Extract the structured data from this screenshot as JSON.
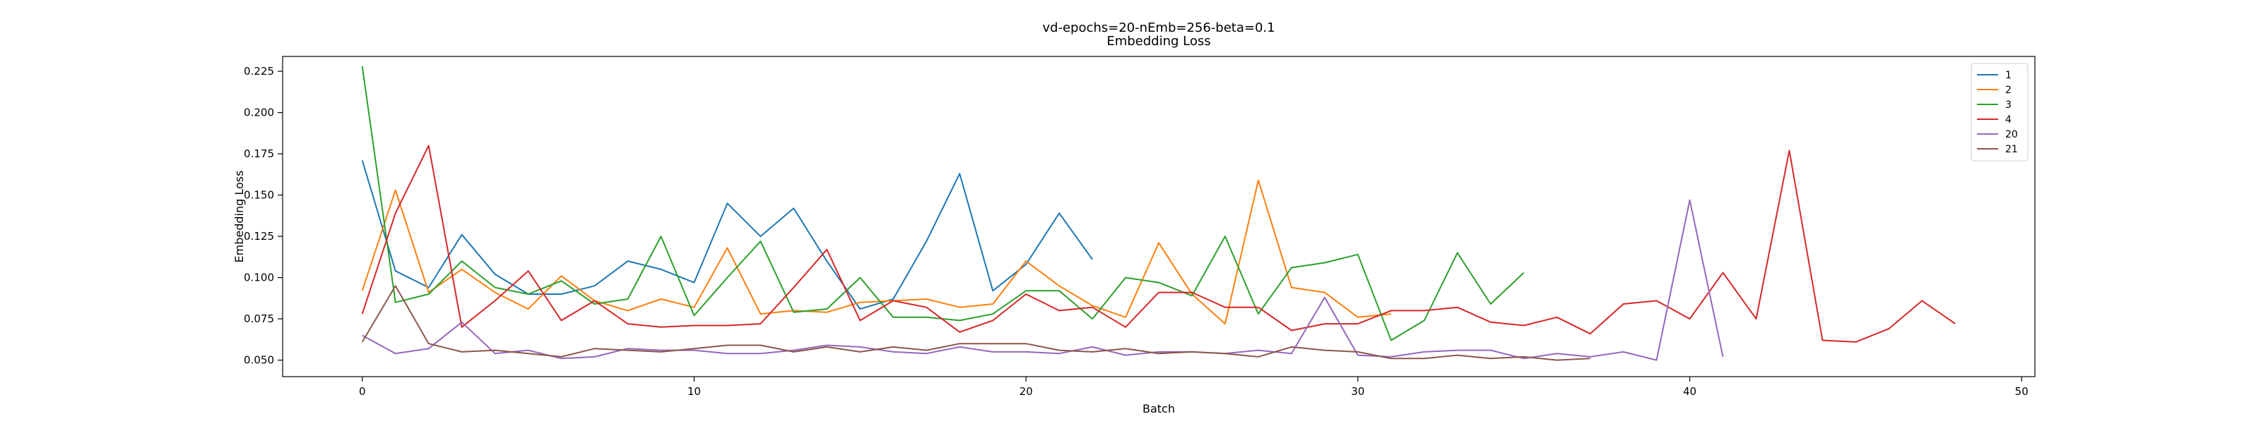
{
  "chart_data": {
    "type": "line",
    "title": "vd-epochs=20-nEmb=256-beta=0.1",
    "subtitle": "Embedding Loss",
    "xlabel": "Batch",
    "ylabel": "Embedding Loss",
    "xlim": [
      -2.4,
      50.4
    ],
    "ylim": [
      0.04,
      0.234
    ],
    "xticks": [
      0,
      10,
      20,
      30,
      40,
      50
    ],
    "yticks": [
      0.05,
      0.075,
      0.1,
      0.125,
      0.15,
      0.175,
      0.2,
      0.225
    ],
    "ytick_labels": [
      "0.050",
      "0.075",
      "0.100",
      "0.125",
      "0.150",
      "0.175",
      "0.200",
      "0.225"
    ],
    "grid": false,
    "legend_position": "top-right",
    "series": [
      {
        "name": "1",
        "color": "#1f77b4",
        "values": [
          0.171,
          0.104,
          0.094,
          0.126,
          0.102,
          0.09,
          0.09,
          0.095,
          0.11,
          0.105,
          0.097,
          0.145,
          0.125,
          0.142,
          0.11,
          0.081,
          0.087,
          0.122,
          0.163,
          0.092,
          0.108,
          0.139,
          0.111
        ]
      },
      {
        "name": "2",
        "color": "#ff7f0e",
        "values": [
          0.092,
          0.153,
          0.091,
          0.105,
          0.091,
          0.081,
          0.101,
          0.086,
          0.08,
          0.087,
          0.082,
          0.118,
          0.078,
          0.08,
          0.079,
          0.085,
          0.086,
          0.087,
          0.082,
          0.084,
          0.11,
          0.095,
          0.083,
          0.076,
          0.121,
          0.09,
          0.072,
          0.159,
          0.094,
          0.091,
          0.076,
          0.078
        ]
      },
      {
        "name": "3",
        "color": "#2ca02c",
        "values": [
          0.228,
          0.085,
          0.09,
          0.11,
          0.094,
          0.09,
          0.098,
          0.084,
          0.087,
          0.125,
          0.077,
          0.1,
          0.122,
          0.079,
          0.081,
          0.1,
          0.076,
          0.076,
          0.074,
          0.078,
          0.092,
          0.092,
          0.075,
          0.1,
          0.097,
          0.089,
          0.125,
          0.078,
          0.106,
          0.109,
          0.114,
          0.062,
          0.074,
          0.115,
          0.084,
          0.103
        ]
      },
      {
        "name": "4",
        "color": "#d62728",
        "values": [
          0.078,
          0.139,
          0.18,
          0.07,
          0.086,
          0.104,
          0.074,
          0.086,
          0.072,
          0.07,
          0.071,
          0.071,
          0.072,
          0.094,
          0.117,
          0.074,
          0.086,
          0.082,
          0.067,
          0.074,
          0.09,
          0.08,
          0.082,
          0.07,
          0.091,
          0.091,
          0.082,
          0.082,
          0.068,
          0.072,
          0.072,
          0.08,
          0.08,
          0.082,
          0.073,
          0.071,
          0.076,
          0.066,
          0.084,
          0.086,
          0.075,
          0.103,
          0.075,
          0.177,
          0.062,
          0.061,
          0.069,
          0.086,
          0.072
        ]
      },
      {
        "name": "20",
        "color": "#9467bd",
        "values": [
          0.065,
          0.054,
          0.057,
          0.073,
          0.054,
          0.056,
          0.051,
          0.052,
          0.057,
          0.056,
          0.056,
          0.054,
          0.054,
          0.056,
          0.059,
          0.058,
          0.055,
          0.054,
          0.058,
          0.055,
          0.055,
          0.054,
          0.058,
          0.053,
          0.055,
          0.055,
          0.054,
          0.056,
          0.054,
          0.088,
          0.053,
          0.052,
          0.055,
          0.056,
          0.056,
          0.051,
          0.054,
          0.052,
          0.055,
          0.05,
          0.147,
          0.052
        ]
      },
      {
        "name": "21",
        "color": "#8c564b",
        "values": [
          0.061,
          0.095,
          0.06,
          0.055,
          0.056,
          0.054,
          0.052,
          0.057,
          0.056,
          0.055,
          0.057,
          0.059,
          0.059,
          0.055,
          0.058,
          0.055,
          0.058,
          0.056,
          0.06,
          0.06,
          0.06,
          0.056,
          0.055,
          0.057,
          0.054,
          0.055,
          0.054,
          0.052,
          0.058,
          0.056,
          0.055,
          0.051,
          0.051,
          0.053,
          0.051,
          0.052,
          0.05,
          0.051
        ]
      }
    ]
  }
}
